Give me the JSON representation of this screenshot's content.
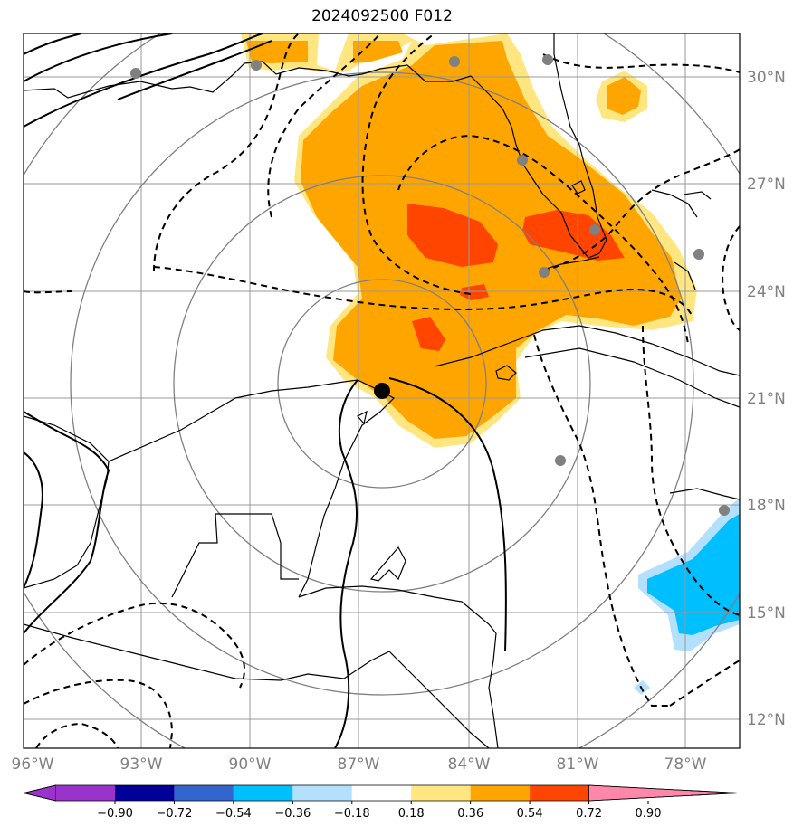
{
  "title": "2024092500 F012",
  "lat_labels": [
    "30°N",
    "27°N",
    "24°N",
    "21°N",
    "18°N",
    "15°N",
    "12°N"
  ],
  "lon_labels": [
    "96°W",
    "93°W",
    "90°W",
    "87°W",
    "84°W",
    "81°W",
    "78°W"
  ],
  "colorbar": {
    "ticks": [
      "−0.90",
      "−0.72",
      "−0.54",
      "−0.36",
      "−0.18",
      "0.18",
      "0.36",
      "0.54",
      "0.72",
      "0.90"
    ],
    "colors": [
      "#9933cc",
      "#000099",
      "#3366cc",
      "#00bfff",
      "#b3e0ff",
      "#ffffff",
      "#ffe680",
      "#ffa500",
      "#ff4500",
      "#b22222",
      "#ff88aa"
    ]
  },
  "colors": {
    "shade_light": "#ffe680",
    "shade_orange": "#ffa500",
    "shade_red": "#ff4500",
    "shade_cyan": "#00bfff",
    "shade_lightblue": "#b3e0ff",
    "grid": "#999999",
    "range_rings": "#808080",
    "station": "#808080"
  },
  "storm_marker": "black-dot"
}
